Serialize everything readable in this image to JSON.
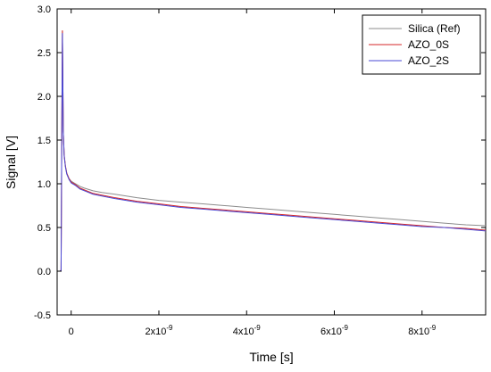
{
  "chart_data": {
    "type": "line",
    "xlabel": "Time [s]",
    "ylabel": "Signal [V]",
    "xlim": [
      -3.2e-10,
      9.45e-09
    ],
    "ylim": [
      -0.5,
      3.0
    ],
    "x_ticks": [
      {
        "value": 0,
        "mant": "0",
        "exp": ""
      },
      {
        "value": 2e-09,
        "mant": "2x10",
        "exp": "-9"
      },
      {
        "value": 4e-09,
        "mant": "4x10",
        "exp": "-9"
      },
      {
        "value": 6e-09,
        "mant": "6x10",
        "exp": "-9"
      },
      {
        "value": 8e-09,
        "mant": "8x10",
        "exp": "-9"
      }
    ],
    "y_ticks": [
      {
        "value": -0.5,
        "label": "-0.5"
      },
      {
        "value": 0.0,
        "label": "0.0"
      },
      {
        "value": 0.5,
        "label": "0.5"
      },
      {
        "value": 1.0,
        "label": "1.0"
      },
      {
        "value": 1.5,
        "label": "1.5"
      },
      {
        "value": 2.0,
        "label": "2.0"
      },
      {
        "value": 2.5,
        "label": "2.5"
      },
      {
        "value": 3.0,
        "label": "3.0"
      }
    ],
    "grid": false,
    "legend_position": "top-right",
    "series": [
      {
        "name": "Silica (Ref)",
        "color": "#8c8c8c",
        "x": [
          -3.2e-10,
          -2.6e-10,
          -2.3e-10,
          -2.15e-10,
          -2e-10,
          -1.9e-10,
          -1.8e-10,
          -1.6e-10,
          -1.3e-10,
          -1e-10,
          -5e-11,
          0,
          1e-10,
          2e-10,
          3e-10,
          5e-10,
          7e-10,
          1e-09,
          1.5e-09,
          2e-09,
          2.5e-09,
          3e-09,
          3.5e-09,
          4e-09,
          4.5e-09,
          5e-09,
          5.5e-09,
          6e-09,
          6.5e-09,
          7e-09,
          7.5e-09,
          8e-09,
          8.5e-09,
          9e-09,
          9.45e-09
        ],
        "y": [
          0.0,
          0.0,
          0.01,
          1.5,
          2.75,
          2.2,
          1.6,
          1.33,
          1.2,
          1.12,
          1.06,
          1.03,
          1.0,
          0.97,
          0.95,
          0.92,
          0.9,
          0.88,
          0.84,
          0.81,
          0.79,
          0.77,
          0.75,
          0.73,
          0.71,
          0.69,
          0.67,
          0.65,
          0.63,
          0.61,
          0.59,
          0.57,
          0.55,
          0.53,
          0.52
        ]
      },
      {
        "name": "AZO_0S",
        "color": "#d62728",
        "x": [
          -3.2e-10,
          -2.6e-10,
          -2.3e-10,
          -2.15e-10,
          -2e-10,
          -1.9e-10,
          -1.8e-10,
          -1.6e-10,
          -1.3e-10,
          -1e-10,
          -5e-11,
          0,
          1e-10,
          2e-10,
          3e-10,
          5e-10,
          7e-10,
          1e-09,
          1.5e-09,
          2e-09,
          2.5e-09,
          3e-09,
          3.5e-09,
          4e-09,
          4.5e-09,
          5e-09,
          5.5e-09,
          6e-09,
          6.5e-09,
          7e-09,
          7.5e-09,
          8e-09,
          8.5e-09,
          9e-09,
          9.45e-09
        ],
        "y": [
          0.0,
          0.0,
          0.01,
          1.5,
          2.75,
          2.2,
          1.6,
          1.33,
          1.2,
          1.12,
          1.06,
          1.02,
          0.99,
          0.95,
          0.93,
          0.89,
          0.87,
          0.84,
          0.8,
          0.77,
          0.74,
          0.72,
          0.7,
          0.68,
          0.66,
          0.64,
          0.62,
          0.6,
          0.58,
          0.56,
          0.54,
          0.52,
          0.5,
          0.49,
          0.47
        ]
      },
      {
        "name": "AZO_2S",
        "color": "#4a4ad6",
        "x": [
          -3.2e-10,
          -2.6e-10,
          -2.3e-10,
          -2.15e-10,
          -2e-10,
          -1.9e-10,
          -1.8e-10,
          -1.6e-10,
          -1.3e-10,
          -1e-10,
          -5e-11,
          0,
          1e-10,
          2e-10,
          3e-10,
          5e-10,
          7e-10,
          1e-09,
          1.5e-09,
          2e-09,
          2.5e-09,
          3e-09,
          3.5e-09,
          4e-09,
          4.5e-09,
          5e-09,
          5.5e-09,
          6e-09,
          6.5e-09,
          7e-09,
          7.5e-09,
          8e-09,
          8.5e-09,
          9e-09,
          9.45e-09
        ],
        "y": [
          0.0,
          0.0,
          0.01,
          1.5,
          2.72,
          2.2,
          1.6,
          1.32,
          1.19,
          1.11,
          1.05,
          1.01,
          0.98,
          0.94,
          0.92,
          0.88,
          0.86,
          0.83,
          0.79,
          0.76,
          0.73,
          0.71,
          0.69,
          0.67,
          0.65,
          0.63,
          0.61,
          0.59,
          0.57,
          0.55,
          0.53,
          0.51,
          0.5,
          0.48,
          0.46
        ]
      }
    ]
  }
}
